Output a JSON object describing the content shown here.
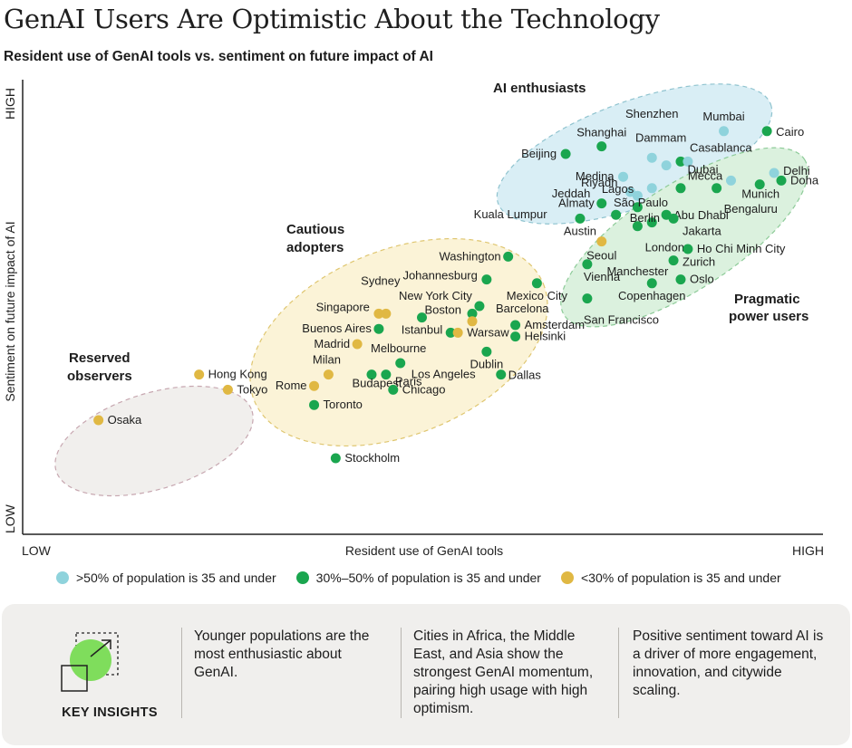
{
  "title": "GenAI Users Are Optimistic About the Technology",
  "subtitle": "Resident use of GenAI tools vs. sentiment on future impact of AI",
  "colors": {
    "young": "#8fd3dc",
    "mid": "#1aa64f",
    "old": "#e0b843",
    "zone_blue": "#d9eef5",
    "zone_green": "#dbf1de",
    "zone_yellow": "#fbf3d7",
    "zone_gray": "#f1efed"
  },
  "chart_data": {
    "type": "scatter",
    "xlabel": "Resident use of GenAI tools",
    "ylabel": "Sentiment on future impact of AI",
    "x_ticks": [
      "LOW",
      "HIGH"
    ],
    "y_ticks": [
      "LOW",
      "HIGH"
    ],
    "xlim": [
      0,
      100
    ],
    "ylim": [
      0,
      100
    ],
    "legend": [
      {
        "key": "young",
        "label": ">50% of population is 35 and under"
      },
      {
        "key": "mid",
        "label": "30%–50% of population is 35 and under"
      },
      {
        "key": "old",
        "label": "<30% of population is 35 and under"
      }
    ],
    "legend_position": "bottom",
    "clusters": [
      "AI enthusiasts",
      "Cautious adopters",
      "Pragmatic power users",
      "Reserved observers"
    ],
    "points": [
      {
        "name": "Osaka",
        "x": 5,
        "y": 20,
        "group": "old"
      },
      {
        "name": "Hong Kong",
        "x": 19,
        "y": 32,
        "group": "old"
      },
      {
        "name": "Tokyo",
        "x": 23,
        "y": 28,
        "group": "old"
      },
      {
        "name": "Stockholm",
        "x": 38,
        "y": 10,
        "group": "mid"
      },
      {
        "name": "Toronto",
        "x": 35,
        "y": 24,
        "group": "mid"
      },
      {
        "name": "Rome",
        "x": 35,
        "y": 29,
        "group": "old"
      },
      {
        "name": "Milan",
        "x": 37,
        "y": 32,
        "group": "old"
      },
      {
        "name": "Budapest",
        "x": 43,
        "y": 32,
        "group": "mid"
      },
      {
        "name": "Paris",
        "x": 45,
        "y": 32,
        "group": "mid"
      },
      {
        "name": "Chicago",
        "x": 46,
        "y": 28,
        "group": "mid"
      },
      {
        "name": "Melbourne",
        "x": 47,
        "y": 35,
        "group": "mid"
      },
      {
        "name": "Madrid",
        "x": 41,
        "y": 40,
        "group": "old"
      },
      {
        "name": "Buenos Aires",
        "x": 44,
        "y": 44,
        "group": "mid"
      },
      {
        "name": "Singapore",
        "x": 44,
        "y": 48,
        "group": "old"
      },
      {
        "name": "Sydney",
        "x": 45,
        "y": 48,
        "group": "old"
      },
      {
        "name": "Istanbul",
        "x": 50,
        "y": 47,
        "group": "mid"
      },
      {
        "name": "Los Angeles",
        "x": 54,
        "y": 43,
        "group": "mid"
      },
      {
        "name": "Warsaw",
        "x": 55,
        "y": 43,
        "group": "old"
      },
      {
        "name": "Boston",
        "x": 57,
        "y": 48,
        "group": "mid"
      },
      {
        "name": "Barcelona",
        "x": 57,
        "y": 46,
        "group": "old"
      },
      {
        "name": "New York City",
        "x": 58,
        "y": 50,
        "group": "mid"
      },
      {
        "name": "Johannesburg",
        "x": 59,
        "y": 57,
        "group": "mid"
      },
      {
        "name": "Dublin",
        "x": 59,
        "y": 38,
        "group": "mid"
      },
      {
        "name": "Dallas",
        "x": 61,
        "y": 32,
        "group": "mid"
      },
      {
        "name": "Amsterdam",
        "x": 63,
        "y": 45,
        "group": "mid"
      },
      {
        "name": "Helsinki",
        "x": 63,
        "y": 42,
        "group": "mid"
      },
      {
        "name": "Washington",
        "x": 62,
        "y": 63,
        "group": "mid"
      },
      {
        "name": "Mexico City",
        "x": 66,
        "y": 56,
        "group": "mid"
      },
      {
        "name": "Vienna",
        "x": 73,
        "y": 61,
        "group": "mid"
      },
      {
        "name": "San Francisco",
        "x": 73,
        "y": 52,
        "group": "mid"
      },
      {
        "name": "Seoul",
        "x": 75,
        "y": 67,
        "group": "old"
      },
      {
        "name": "Manchester",
        "x": 80,
        "y": 71,
        "group": "mid"
      },
      {
        "name": "London",
        "x": 82,
        "y": 72,
        "group": "mid"
      },
      {
        "name": "Copenhagen",
        "x": 82,
        "y": 56,
        "group": "mid"
      },
      {
        "name": "Zurich",
        "x": 85,
        "y": 62,
        "group": "mid"
      },
      {
        "name": "Oslo",
        "x": 86,
        "y": 57,
        "group": "mid"
      },
      {
        "name": "Ho Chi Minh City",
        "x": 87,
        "y": 65,
        "group": "mid"
      },
      {
        "name": "Austin",
        "x": 72,
        "y": 73,
        "group": "mid"
      },
      {
        "name": "Almaty",
        "x": 75,
        "y": 77,
        "group": "mid"
      },
      {
        "name": "Kuala Lumpur",
        "x": 77,
        "y": 74,
        "group": "mid"
      },
      {
        "name": "Beijing",
        "x": 70,
        "y": 90,
        "group": "mid"
      },
      {
        "name": "Shanghai",
        "x": 75,
        "y": 92,
        "group": "mid"
      },
      {
        "name": "Medina",
        "x": 78,
        "y": 84,
        "group": "young"
      },
      {
        "name": "Riyadh",
        "x": 79,
        "y": 80,
        "group": "young"
      },
      {
        "name": "Jeddah",
        "x": 80,
        "y": 79,
        "group": "young"
      },
      {
        "name": "Berlin",
        "x": 80,
        "y": 76,
        "group": "mid"
      },
      {
        "name": "Lagos",
        "x": 82,
        "y": 81,
        "group": "young"
      },
      {
        "name": "Shenzhen",
        "x": 82,
        "y": 89,
        "group": "young"
      },
      {
        "name": "Dammam",
        "x": 84,
        "y": 87,
        "group": "young"
      },
      {
        "name": "Casablanca",
        "x": 86,
        "y": 88,
        "group": "mid"
      },
      {
        "name": "Mecca",
        "x": 87,
        "y": 88,
        "group": "young"
      },
      {
        "name": "São Paulo",
        "x": 86,
        "y": 81,
        "group": "mid"
      },
      {
        "name": "Abu Dhabi",
        "x": 84,
        "y": 74,
        "group": "mid"
      },
      {
        "name": "Jakarta",
        "x": 85,
        "y": 73,
        "group": "mid"
      },
      {
        "name": "Bengaluru",
        "x": 91,
        "y": 81,
        "group": "mid"
      },
      {
        "name": "Dubai",
        "x": 93,
        "y": 83,
        "group": "young"
      },
      {
        "name": "Mumbai",
        "x": 92,
        "y": 96,
        "group": "young"
      },
      {
        "name": "Cairo",
        "x": 98,
        "y": 96,
        "group": "mid"
      },
      {
        "name": "Delhi",
        "x": 99,
        "y": 85,
        "group": "young"
      },
      {
        "name": "Doha",
        "x": 100,
        "y": 83,
        "group": "mid"
      },
      {
        "name": "Munich",
        "x": 97,
        "y": 82,
        "group": "mid"
      }
    ]
  },
  "legend_items": [
    ">50% of population is 35 and under",
    "30%–50% of population is 35 and under",
    "<30% of population is 35 and under"
  ],
  "insights": {
    "label": "KEY INSIGHTS",
    "items": [
      "Younger populations are the most enthusiastic about GenAI.",
      "Cities in Africa, the Middle East, and Asia show the strongest GenAI momentum, pairing high usage with high optimism.",
      "Positive sentiment toward AI is a driver of more engagement, innovation, and citywide scaling."
    ]
  }
}
